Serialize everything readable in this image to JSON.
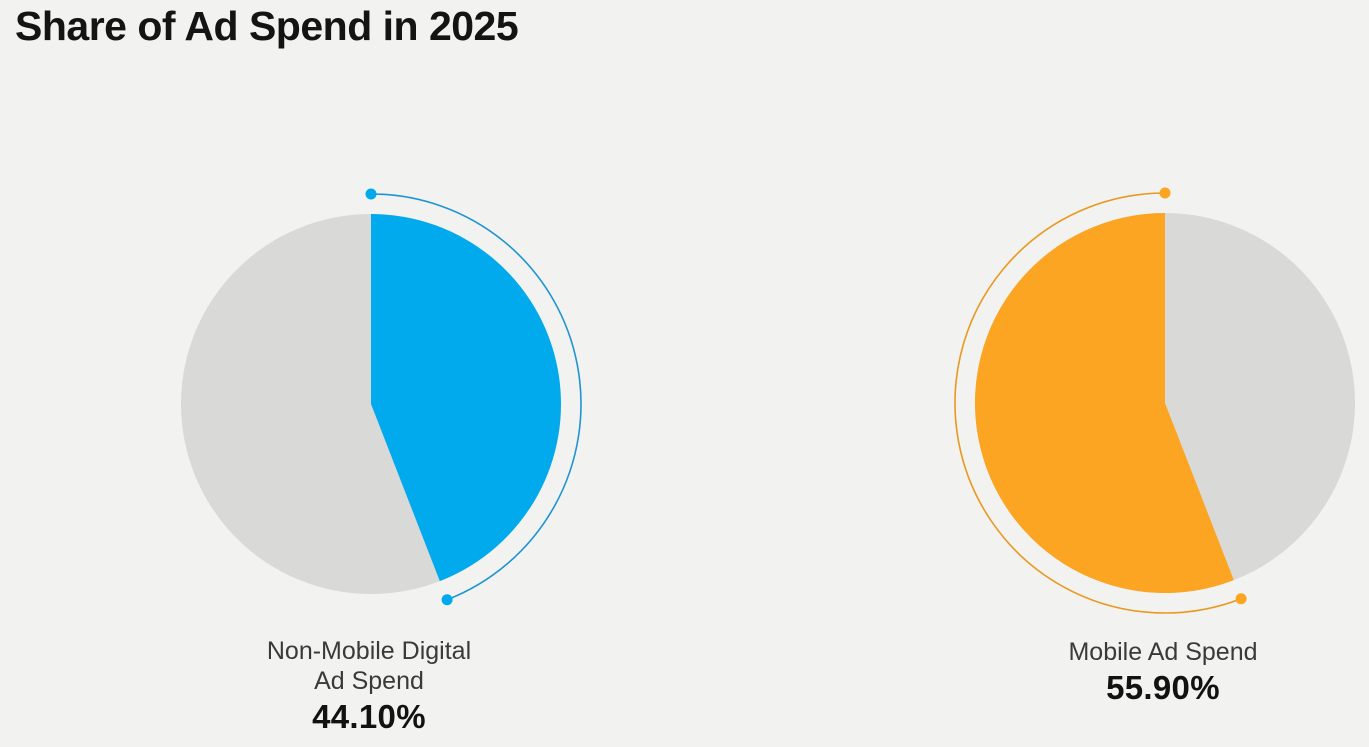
{
  "header": {
    "title": "Share of Ad Spend in 2025"
  },
  "colors": {
    "background": "#F2F2F0",
    "remainder_grey": "#D9D9D8",
    "blue": "#00AAEC",
    "blue_arc": "#1E95D2",
    "orange": "#FBA522",
    "orange_arc": "#E9991F",
    "title_text": "#141414",
    "label_text": "#3A3A3A",
    "value_text": "#121212"
  },
  "chart_data": [
    {
      "type": "pie",
      "label": "Non-Mobile Digital\nAd Spend",
      "value": 44.1,
      "value_label": "44.10%",
      "slice_color": "#00AAEC",
      "arc_color": "#1E95D2",
      "remainder_color": "#D9D9D8",
      "direction": "clockwise",
      "start_angle_deg": 0,
      "legend_position": "below",
      "grid": false
    },
    {
      "type": "pie",
      "label": "Mobile Ad Spend",
      "value": 55.9,
      "value_label": "55.90%",
      "slice_color": "#FBA522",
      "arc_color": "#E9991F",
      "remainder_color": "#D9D9D8",
      "direction": "counterclockwise",
      "start_angle_deg": 0,
      "legend_position": "below",
      "grid": false
    }
  ]
}
